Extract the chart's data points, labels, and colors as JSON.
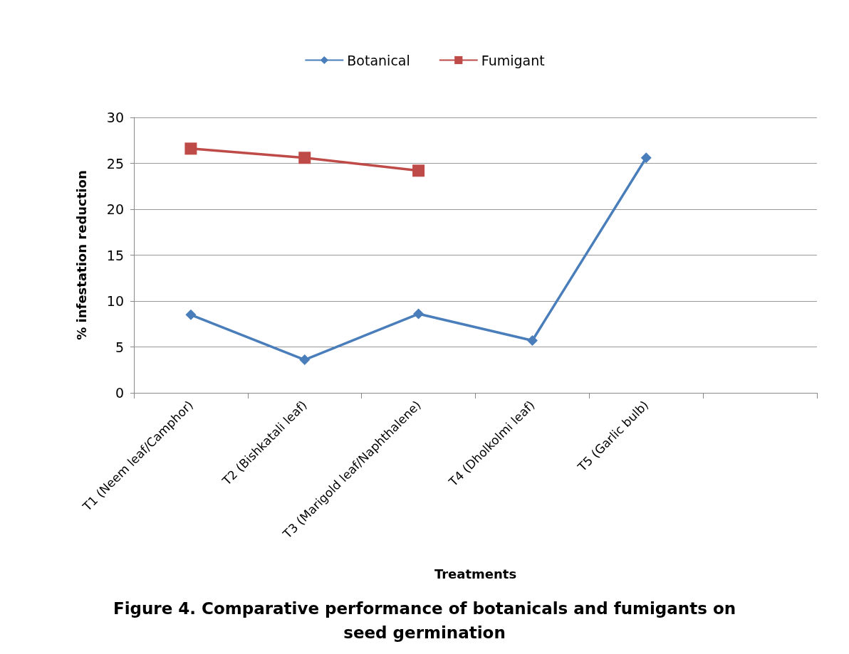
{
  "chart_data": {
    "type": "line",
    "title": "Figure 4. Comparative performance of botanicals and fumigants on\nseed germination",
    "xlabel": "Treatments",
    "ylabel": "% infestation reduction",
    "categories": [
      "T1 (Neem leaf/Camphor)",
      "T2 (Bishkatali leaf)",
      "T3 (Marigold leaf/Naphthalene)",
      "T4 (Dholkolmi leaf)",
      "T5 (Garlic bulb)",
      null
    ],
    "series": [
      {
        "name": "Botanical",
        "color": "#4a7ebb",
        "marker": "diamond",
        "values": [
          8.5,
          3.6,
          8.6,
          5.7,
          25.6,
          null
        ]
      },
      {
        "name": "Fumigant",
        "color": "#be4b48",
        "marker": "square",
        "values": [
          26.6,
          25.6,
          24.2,
          null,
          null,
          null
        ]
      }
    ],
    "ylim": [
      0,
      30
    ],
    "yticks": [
      0,
      5,
      10,
      15,
      20,
      25,
      30
    ],
    "grid": "y",
    "legend": "top"
  }
}
